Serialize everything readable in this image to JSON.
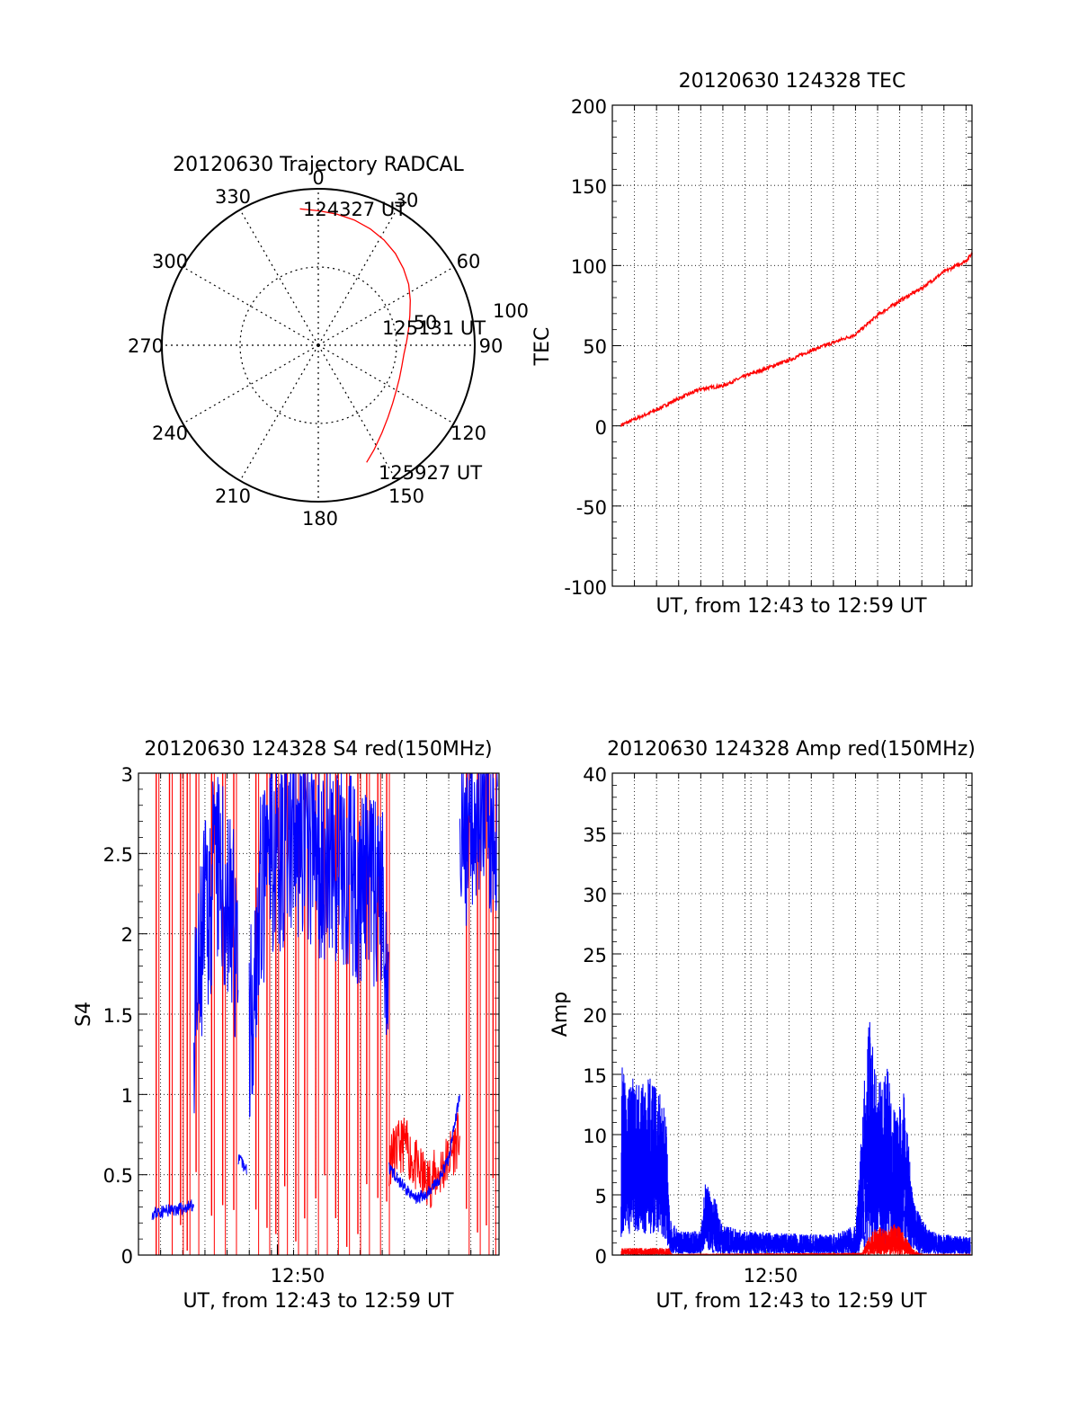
{
  "colors": {
    "red": "#ff0000",
    "blue": "#0000ff",
    "axis": "#000000",
    "grid": "#000000"
  },
  "polar": {
    "title": "20120630 Trajectory RADCAL",
    "angle_labels": [
      "0",
      "30",
      "60",
      "90",
      "120",
      "150",
      "180",
      "210",
      "240",
      "270",
      "300",
      "330"
    ],
    "radius_labels": [
      "50",
      "100"
    ],
    "time_labels": [
      "124327 UT",
      "125131 UT",
      "125927 UT"
    ],
    "chart_data": {
      "type": "polar",
      "title": "20120630 Trajectory RADCAL",
      "r_max": 100,
      "rings": [
        50,
        100
      ],
      "angles_deg": [
        0,
        30,
        60,
        90,
        120,
        150,
        180,
        210,
        240,
        270,
        300,
        330
      ],
      "trajectory": {
        "color": "red",
        "az": [
          -7.7,
          0,
          8,
          16,
          24,
          32,
          40,
          48,
          56,
          64,
          72,
          80,
          88,
          96,
          104,
          112,
          120,
          128,
          136,
          144,
          152,
          157.6
        ],
        "zen": [
          88,
          86,
          84.7,
          83.3,
          81.5,
          79.3,
          76.6,
          73.2,
          69.7,
          65.4,
          61.5,
          58.6,
          56.4,
          55.0,
          55.0,
          56.0,
          57.6,
          60.3,
          64.1,
          69.2,
          75.8,
          81.0
        ]
      },
      "time_marks": [
        {
          "label": "124327 UT",
          "az": -7.7,
          "zen": 88
        },
        {
          "label": "125131 UT",
          "az": 80,
          "zen": 58
        },
        {
          "label": "125927 UT",
          "az": 157.6,
          "zen": 81
        }
      ]
    }
  },
  "tec": {
    "title": "20120630 124328 TEC",
    "ylabel": "TEC",
    "xlabel": "UT, from 12:43 to 12:59 UT",
    "ytick_labels": [
      "200",
      "150",
      "100",
      "50",
      "0",
      "-50",
      "-100"
    ],
    "chart_data": {
      "type": "line",
      "title": "20120630 124328 TEC",
      "ylabel": "TEC",
      "xlabel": "UT, from 12:43 to 12:59 UT",
      "ylim": [
        -100,
        200
      ],
      "xlim_min": [
        0,
        16.27
      ],
      "grid": true,
      "series": [
        {
          "color": "red",
          "x_min": [
            0.4,
            1,
            2,
            3,
            4,
            5,
            6,
            7,
            8,
            9,
            10,
            11,
            12,
            13,
            14,
            15,
            16,
            16.3
          ],
          "y": [
            0.5,
            4,
            10,
            17,
            23,
            25,
            31,
            36,
            41,
            47,
            52,
            57,
            69,
            78,
            86,
            96,
            103,
            108
          ]
        }
      ]
    }
  },
  "s4": {
    "title": "20120630 124328 S4 red(150MHz)",
    "ylabel": "S4",
    "xtick_label": "12:50",
    "xlabel": "UT, from 12:43 to 12:59 UT",
    "ytick_labels": [
      "3",
      "2.5",
      "2",
      "1.5",
      "1",
      "0.5",
      "0"
    ],
    "chart_data": {
      "type": "line",
      "title": "20120630 124328 S4 red(150MHz)",
      "ylabel": "S4",
      "xlabel": "UT, from 12:43 to 12:59 UT",
      "ylim": [
        0,
        3
      ],
      "xlim_min": [
        0,
        16.27
      ],
      "x_tick": {
        "label": "12:50",
        "min": 6.27
      },
      "grid": true,
      "series": [
        {
          "color": "blue",
          "segments": [
            {
              "x_min": [
                0.6,
                1.0,
                1.5,
                2.0,
                2.5
              ],
              "y": [
                0.26,
                0.27,
                0.28,
                0.29,
                0.31
              ]
            },
            {
              "x_min": [
                2.5,
                3.0,
                3.5,
                4.0,
                4.5
              ],
              "y": [
                1.3,
                2.1,
                2.4,
                2.2,
                1.9
              ]
            },
            {
              "x_min": [
                4.5,
                4.9
              ],
              "y": [
                0.6,
                0.53
              ]
            },
            {
              "x_min": [
                5.0,
                5.5,
                6.0,
                7.0,
                8.0,
                9.0,
                10.0,
                11.0,
                11.3
              ],
              "y": [
                1.4,
                2.2,
                2.5,
                2.6,
                2.5,
                2.4,
                2.3,
                2.2,
                1.8
              ]
            },
            {
              "x_min": [
                11.3,
                12.0,
                12.5,
                13.0,
                13.5,
                14.0,
                14.5
              ],
              "y": [
                0.55,
                0.42,
                0.35,
                0.38,
                0.45,
                0.6,
                1.0
              ]
            },
            {
              "x_min": [
                14.5,
                15.0,
                15.5,
                16.2
              ],
              "y": [
                2.5,
                2.8,
                2.9,
                2.7
              ]
            }
          ]
        },
        {
          "color": "red",
          "segments": [
            {
              "x_min": [
                11.3,
                12.0,
                12.5,
                13.0,
                13.5,
                14.0,
                14.5
              ],
              "y": [
                0.6,
                0.7,
                0.55,
                0.45,
                0.5,
                0.6,
                0.75
              ]
            }
          ],
          "spikes_x_min": [
            0.8,
            1.4,
            1.9,
            2.2,
            2.6,
            3.3,
            3.8,
            4.3,
            5.3,
            5.8,
            6.2,
            6.6,
            7.1,
            7.5,
            8.0,
            8.4,
            8.9,
            9.4,
            9.9,
            10.3,
            10.8,
            11.2,
            14.8,
            15.3,
            15.7,
            16.0
          ],
          "spike_range": [
            0,
            3
          ]
        }
      ]
    }
  },
  "amp": {
    "title": "20120630 124328 Amp red(150MHz)",
    "ylabel": "Amp",
    "xtick_label": "12:50",
    "xlabel": "UT, from 12:43 to 12:59 UT",
    "ytick_labels": [
      "40",
      "35",
      "30",
      "25",
      "20",
      "15",
      "10",
      "5",
      "0"
    ],
    "chart_data": {
      "type": "line",
      "title": "20120630 124328 Amp red(150MHz)",
      "ylabel": "Amp",
      "xlabel": "UT, from 12:43 to 12:59 UT",
      "ylim": [
        0,
        40
      ],
      "xlim_min": [
        0,
        16.27
      ],
      "x_tick": {
        "label": "12:50",
        "min": 6.27
      },
      "grid": true,
      "series": [
        {
          "color": "blue",
          "envelope": {
            "x_min": [
              0.4,
              0.8,
              1.2,
              1.6,
              2.0,
              2.4,
              2.6,
              3.0,
              4.0,
              4.2,
              4.6,
              5.0,
              6.0,
              8.0,
              10.0,
              11.0,
              11.3,
              11.6,
              12.0,
              12.4,
              12.8,
              13.2,
              13.6,
              14.0,
              14.4,
              14.8,
              15.2,
              15.6,
              16.2
            ],
            "y_max": [
              16,
              15,
              14.5,
              15,
              14,
              13,
              3,
              2,
              2,
              6,
              5,
              2.5,
              2,
              1.8,
              1.7,
              2.5,
              12,
              20,
              14,
              16,
              12,
              14,
              4.5,
              3,
              2,
              1.8,
              1.7,
              1.6,
              1.5
            ],
            "y_min": [
              3,
              3.5,
              4,
              3,
              4,
              2.5,
              0.3,
              0.2,
              0.2,
              1,
              0.3,
              0.2,
              0.2,
              0.2,
              0.2,
              0.2,
              0.5,
              1,
              1.5,
              1,
              0.8,
              0.5,
              0.3,
              0.2,
              0.2,
              0.2,
              0.2,
              0.2,
              0.2
            ]
          }
        },
        {
          "color": "red",
          "envelope": {
            "x_min": [
              0.4,
              2.6,
              2.7,
              11.3,
              11.6,
              12.0,
              12.4,
              12.8,
              13.2,
              13.6,
              14.0,
              16.2
            ],
            "y_max": [
              0.6,
              0.6,
              0.1,
              0.2,
              1.5,
              2.5,
              2,
              2.8,
              1.8,
              0.5,
              0.1,
              0.1
            ],
            "y_min": [
              0,
              0,
              0,
              0,
              0,
              0,
              0,
              0,
              0,
              0,
              0,
              0
            ]
          }
        }
      ]
    }
  }
}
